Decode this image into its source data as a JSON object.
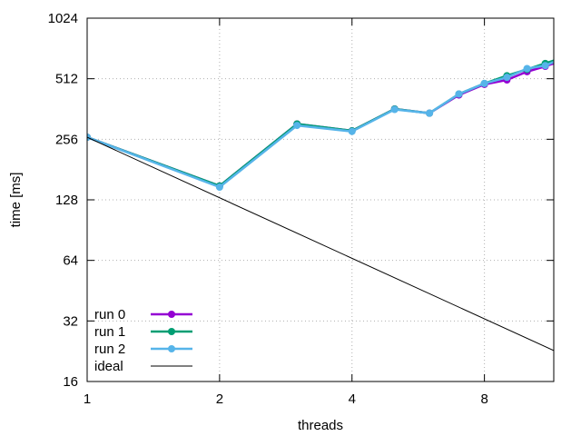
{
  "chart_data": {
    "type": "line",
    "title": "",
    "xlabel": "threads",
    "ylabel": "time [ms]",
    "x_scale": "log2",
    "y_scale": "log2",
    "xlim": [
      1,
      11.5
    ],
    "ylim": [
      16,
      1024
    ],
    "x_ticks": [
      1,
      2,
      4,
      8
    ],
    "y_ticks": [
      16,
      32,
      64,
      128,
      256,
      512,
      1024
    ],
    "grid": true,
    "legend_position": "bottom-left",
    "series": [
      {
        "name": "run 0",
        "color": "#9400d3",
        "markers": true,
        "x": [
          1,
          2,
          3,
          4,
          5,
          6,
          7,
          8,
          9,
          10,
          11,
          12
        ],
        "y": [
          262,
          150,
          305,
          282,
          362,
          345,
          425,
          480,
          505,
          555,
          590,
          630
        ]
      },
      {
        "name": "run 1",
        "color": "#009e73",
        "markers": true,
        "x": [
          1,
          2,
          3,
          4,
          5,
          6,
          7,
          8,
          9,
          10,
          11,
          12
        ],
        "y": [
          262,
          150,
          305,
          282,
          362,
          345,
          430,
          485,
          530,
          570,
          610,
          650
        ]
      },
      {
        "name": "run 2",
        "color": "#56b4e9",
        "markers": true,
        "x": [
          1,
          2,
          3,
          4,
          5,
          6,
          7,
          8,
          9,
          10,
          11,
          12
        ],
        "y": [
          262,
          148,
          300,
          280,
          360,
          345,
          430,
          485,
          520,
          575,
          595,
          645
        ]
      },
      {
        "name": "ideal",
        "color": "#000000",
        "markers": false,
        "x": [
          1,
          11.5
        ],
        "y": [
          262,
          22.8
        ]
      }
    ]
  }
}
